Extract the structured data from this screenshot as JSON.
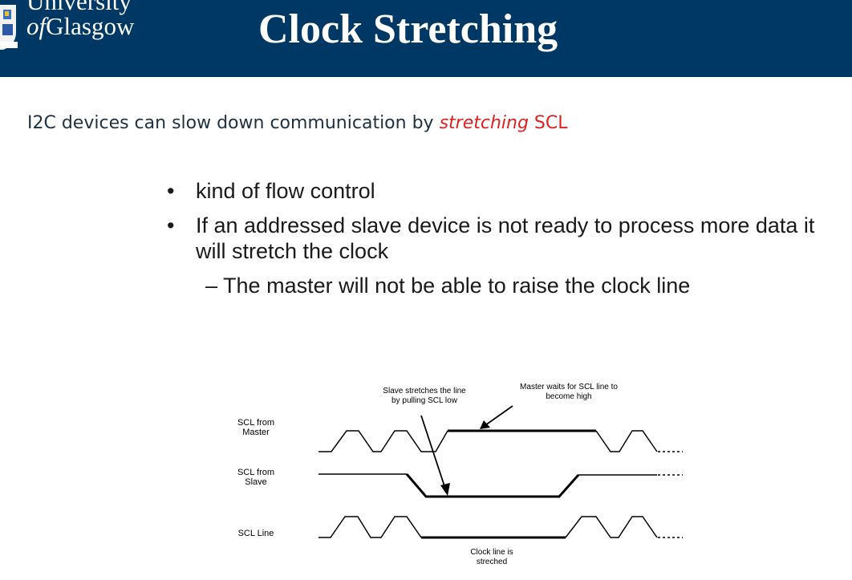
{
  "header": {
    "logo_line1": "University",
    "logo_of": "of",
    "logo_line2": "Glasgow",
    "title": "Clock Stretching",
    "background": "#003865"
  },
  "intro": {
    "before": "I2C devices can slow down communication by ",
    "emphasis": "stretching",
    "after": " SCL",
    "accent": "#e02020"
  },
  "bullets": [
    {
      "marker": "•",
      "text": "kind of flow control"
    },
    {
      "marker": "•",
      "text": "If an addressed slave device is not ready to process more data it will stretch the clock"
    }
  ],
  "sub_bullet": {
    "marker": "–",
    "text": "The master will not be able to raise the clock line"
  },
  "diagram": {
    "signals": [
      "SCL from Master",
      "SCL from Slave",
      "SCL Line"
    ],
    "annotations": {
      "slave_stretch_line1": "Slave stretches the line",
      "slave_stretch_line2": "by pulling SCL low",
      "master_wait_line1": "Master waits for SCL line to",
      "master_wait_line2": "become high",
      "clock_stretched_line1": "Clock line is",
      "clock_stretched_line2": "streched"
    }
  }
}
